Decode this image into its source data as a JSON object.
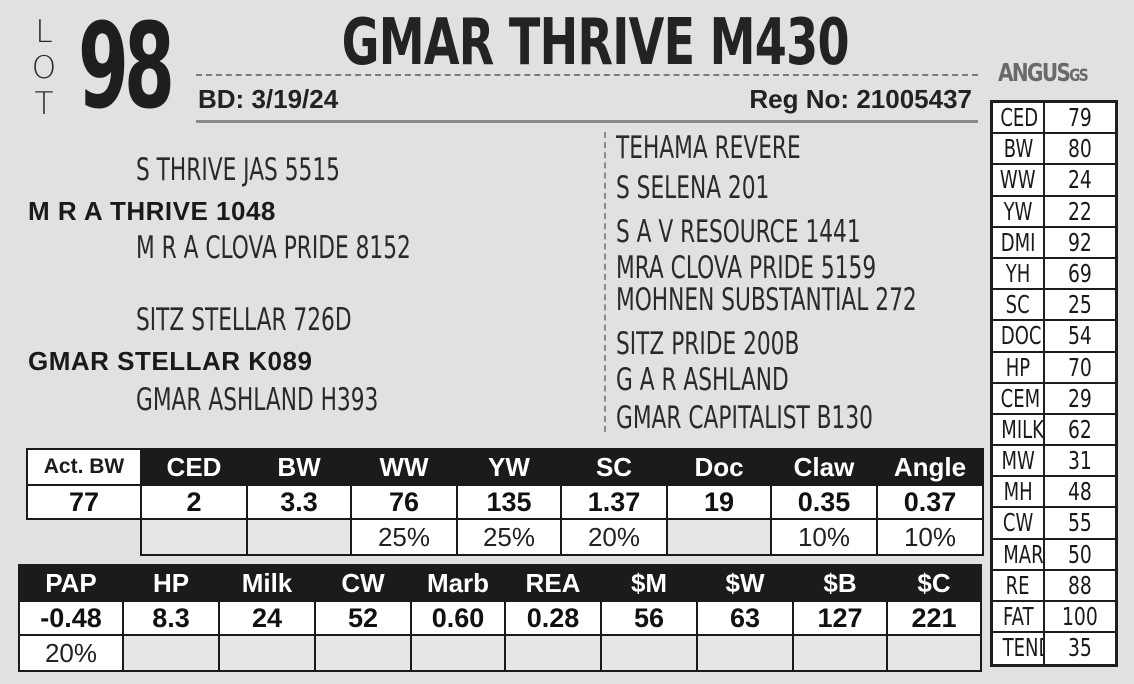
{
  "lot": {
    "letters": [
      "L",
      "O",
      "T"
    ],
    "number": "98"
  },
  "animal": {
    "name": "GMAR THRIVE M430",
    "bd_label": "BD:",
    "bd_value": "3/19/24",
    "reg_label": "Reg No:",
    "reg_value": "21005437"
  },
  "logo": {
    "text": "ANGUS",
    "suffix": "GS"
  },
  "pedigree": {
    "sire": "M R A THRIVE 1048",
    "sire_sire": "S THRIVE JAS 5515",
    "sire_dam": "M R A CLOVA PRIDE 8152",
    "dam": "GMAR STELLAR K089",
    "dam_sire": "SITZ STELLAR 726D",
    "dam_dam": "GMAR ASHLAND H393",
    "right": [
      "TEHAMA REVERE",
      "S SELENA 201",
      "S A V RESOURCE 1441",
      "MRA CLOVA PRIDE 5159",
      "MOHNEN SUBSTANTIAL 272",
      "SITZ PRIDE 200B",
      "G A R ASHLAND",
      "GMAR CAPITALIST B130"
    ]
  },
  "side_epds": [
    {
      "label": "CED",
      "value": "79"
    },
    {
      "label": "BW",
      "value": "80"
    },
    {
      "label": "WW",
      "value": "24"
    },
    {
      "label": "YW",
      "value": "22"
    },
    {
      "label": "DMI",
      "value": "92"
    },
    {
      "label": "YH",
      "value": "69"
    },
    {
      "label": "SC",
      "value": "25"
    },
    {
      "label": "DOC",
      "value": "54"
    },
    {
      "label": "HP",
      "value": "70"
    },
    {
      "label": "CEM",
      "value": "29"
    },
    {
      "label": "MILK",
      "value": "62"
    },
    {
      "label": "MW",
      "value": "31"
    },
    {
      "label": "MH",
      "value": "48"
    },
    {
      "label": "CW",
      "value": "55"
    },
    {
      "label": "MARB",
      "value": "50"
    },
    {
      "label": "RE",
      "value": "88"
    },
    {
      "label": "FAT",
      "value": "100"
    },
    {
      "label": "TEND",
      "value": "35"
    }
  ],
  "table1": {
    "headers": [
      "Act. BW",
      "CED",
      "BW",
      "WW",
      "YW",
      "SC",
      "Doc",
      "Claw",
      "Angle"
    ],
    "values": [
      "77",
      "2",
      "3.3",
      "76",
      "135",
      "1.37",
      "19",
      "0.35",
      "0.37"
    ],
    "percents": [
      "",
      "",
      "",
      "25%",
      "25%",
      "20%",
      "",
      "10%",
      "10%"
    ]
  },
  "table2": {
    "headers": [
      "PAP",
      "HP",
      "Milk",
      "CW",
      "Marb",
      "REA",
      "$M",
      "$W",
      "$B",
      "$C"
    ],
    "values": [
      "-0.48",
      "8.3",
      "24",
      "52",
      "0.60",
      "0.28",
      "56",
      "63",
      "127",
      "221"
    ],
    "percents": [
      "20%",
      "",
      "",
      "",
      "",
      "",
      "",
      "",
      "",
      ""
    ]
  }
}
